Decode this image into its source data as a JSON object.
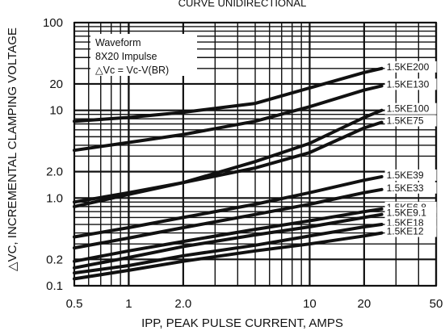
{
  "chart_data": {
    "type": "line",
    "title": "CURVE UNIDIRECTIONAL",
    "xlabel": "IPP, PEAK PULSE CURRENT, AMPS",
    "ylabel": "△VC, INCREMENTAL CLAMPING VOLTAGE",
    "x_scale": "log",
    "y_scale": "log",
    "xlim": [
      0.5,
      50
    ],
    "ylim": [
      0.1,
      100
    ],
    "x_ticks": [
      {
        "value": 0.5,
        "label": "0.5"
      },
      {
        "value": 1,
        "label": "1"
      },
      {
        "value": 2,
        "label": "2.0"
      },
      {
        "value": 10,
        "label": "10"
      },
      {
        "value": 20,
        "label": "20"
      },
      {
        "value": 50,
        "label": "50"
      }
    ],
    "y_ticks": [
      {
        "value": 100,
        "label": "100"
      },
      {
        "value": 20,
        "label": "20"
      },
      {
        "value": 10,
        "label": "10"
      },
      {
        "value": 2,
        "label": "2.0"
      },
      {
        "value": 1,
        "label": "1.0"
      },
      {
        "value": 0.2,
        "label": "0.2"
      },
      {
        "value": 0.1,
        "label": "0.1"
      }
    ],
    "grid": true,
    "annotation": {
      "lines": [
        "Waveform",
        "8X20 Impulse",
        "△Vc = Vc-V(BR)"
      ]
    },
    "series": [
      {
        "name": "1.5KE200",
        "x": [
          0.5,
          1,
          2,
          5,
          10,
          20,
          25
        ],
        "y": [
          7.5,
          8.3,
          9.5,
          12,
          18,
          27,
          30
        ]
      },
      {
        "name": "1.5KE130",
        "x": [
          0.5,
          1,
          2,
          5,
          10,
          20,
          25
        ],
        "y": [
          3.5,
          4.3,
          5.3,
          7.5,
          11,
          17,
          19
        ]
      },
      {
        "name": "1.5KE100",
        "x": [
          0.5,
          1,
          2,
          5,
          10,
          20,
          25
        ],
        "y": [
          0.8,
          1.1,
          1.5,
          2.6,
          4.2,
          8.3,
          10
        ]
      },
      {
        "name": "1.5KE75",
        "x": [
          0.5,
          1,
          2,
          5,
          10,
          20,
          25
        ],
        "y": [
          0.9,
          1.15,
          1.5,
          2.2,
          3.3,
          6.3,
          7.3
        ]
      },
      {
        "name": "1.5KE39",
        "x": [
          0.5,
          1,
          2,
          5,
          10,
          20,
          25
        ],
        "y": [
          0.36,
          0.46,
          0.6,
          0.85,
          1.15,
          1.6,
          1.75
        ]
      },
      {
        "name": "1.5KE33",
        "x": [
          0.5,
          1,
          2,
          5,
          10,
          20,
          25
        ],
        "y": [
          0.27,
          0.35,
          0.46,
          0.65,
          0.85,
          1.15,
          1.25
        ]
      },
      {
        "name": "1.5KE6.8",
        "x": [
          0.5,
          1,
          2,
          5,
          10,
          20,
          25
        ],
        "y": [
          0.19,
          0.25,
          0.32,
          0.44,
          0.55,
          0.7,
          0.75
        ]
      },
      {
        "name": "1.5KE9.1",
        "x": [
          0.5,
          1,
          2,
          5,
          10,
          20,
          25
        ],
        "y": [
          0.16,
          0.21,
          0.28,
          0.38,
          0.47,
          0.6,
          0.65
        ]
      },
      {
        "name": "1.5KE18",
        "x": [
          0.5,
          1,
          2,
          5,
          10,
          20,
          25
        ],
        "y": [
          0.14,
          0.17,
          0.22,
          0.29,
          0.37,
          0.47,
          0.5
        ]
      },
      {
        "name": "1.5KE12",
        "x": [
          0.5,
          1,
          2,
          5,
          10,
          20,
          25
        ],
        "y": [
          0.12,
          0.15,
          0.19,
          0.25,
          0.3,
          0.37,
          0.4
        ]
      }
    ]
  }
}
